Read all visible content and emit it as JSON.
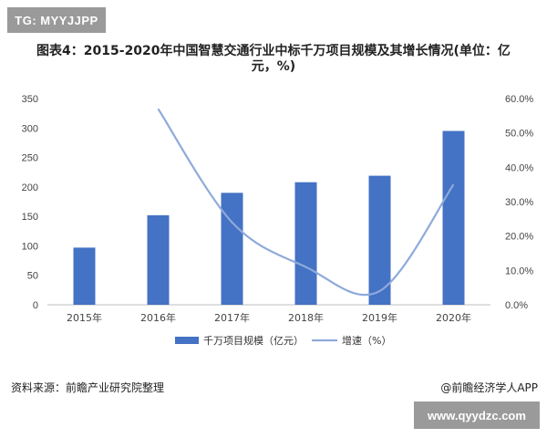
{
  "tag": "TG: MYYJJPP",
  "title_line1": "图表4：2015-2020年中国智慧交通行业中标千万项目规模及其增长情况(单位：亿",
  "title_line2": "元，%)",
  "source": "资料来源：前瞻产业研究院整理",
  "brand": "@前瞻经济学人APP",
  "site": "www.qyydzc.com",
  "chart_data": {
    "type": "bar",
    "categories": [
      "2015年",
      "2016年",
      "2017年",
      "2018年",
      "2019年",
      "2020年"
    ],
    "series": [
      {
        "name": "千万项目规模（亿元）",
        "type": "bar",
        "axis": "left",
        "color": "#4472c4",
        "values": [
          97,
          152,
          190,
          208,
          219,
          295
        ]
      },
      {
        "name": "增速（%）",
        "type": "line",
        "axis": "right",
        "color": "#8eaadb",
        "values": [
          null,
          57,
          24,
          11,
          4,
          35
        ]
      }
    ],
    "y_left": {
      "min": 0,
      "max": 350,
      "ticks": [
        "0",
        "50",
        "100",
        "150",
        "200",
        "250",
        "300",
        "350"
      ]
    },
    "y_right": {
      "min": 0,
      "max": 60,
      "ticks": [
        "0.0%",
        "10.0%",
        "20.0%",
        "30.0%",
        "40.0%",
        "50.0%",
        "60.0%"
      ]
    },
    "legend_position": "bottom",
    "grid": false
  }
}
